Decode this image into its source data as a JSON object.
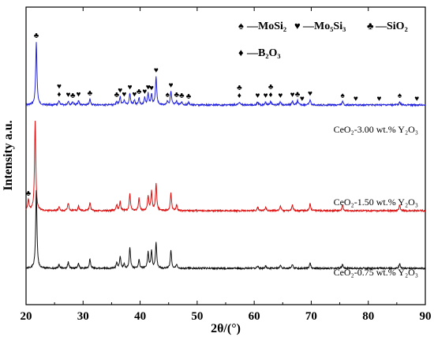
{
  "chart_data": {
    "type": "line",
    "xlabel": "2θ/(°)",
    "ylabel": "Intensity a.u.",
    "xlim": [
      20,
      90
    ],
    "xticks": [
      "20",
      "30",
      "40",
      "50",
      "60",
      "70",
      "80",
      "90"
    ],
    "grid": false,
    "legend": [
      {
        "symbol": "♠",
        "text": "—MoSi₂",
        "phase": "MoSi2"
      },
      {
        "symbol": "♥",
        "text": "—Mo₅Si₃",
        "phase": "Mo5Si3"
      },
      {
        "symbol": "♣",
        "text": "—SiO₂",
        "phase": "SiO2"
      },
      {
        "symbol": "♦",
        "text": "—B₂O₃",
        "phase": "B2O3"
      }
    ],
    "legend_placement": "top-right",
    "series": [
      {
        "name": "CeO₂-3.00 wt.%  Y₂O₃",
        "color": "#2222dd",
        "peaks": [
          [
            21.8,
            1.0
          ],
          [
            25.8,
            0.07
          ],
          [
            27.4,
            0.06
          ],
          [
            28.2,
            0.05
          ],
          [
            29.2,
            0.07
          ],
          [
            31.2,
            0.09
          ],
          [
            35.9,
            0.06
          ],
          [
            36.5,
            0.13
          ],
          [
            37.2,
            0.07
          ],
          [
            38.2,
            0.18
          ],
          [
            39.0,
            0.07
          ],
          [
            39.8,
            0.11
          ],
          [
            40.8,
            0.11
          ],
          [
            41.4,
            0.18
          ],
          [
            42.0,
            0.17
          ],
          [
            42.8,
            0.45
          ],
          [
            44.8,
            0.06
          ],
          [
            45.4,
            0.21
          ],
          [
            46.4,
            0.06
          ],
          [
            47.3,
            0.05
          ],
          [
            48.5,
            0.04
          ],
          [
            57.4,
            0.05
          ],
          [
            60.6,
            0.05
          ],
          [
            62.0,
            0.05
          ],
          [
            62.9,
            0.06
          ],
          [
            64.6,
            0.05
          ],
          [
            66.7,
            0.06
          ],
          [
            67.6,
            0.07
          ],
          [
            69.8,
            0.08
          ],
          [
            75.5,
            0.05
          ],
          [
            85.5,
            0.05
          ]
        ]
      },
      {
        "name": "CeO₂-1.50 wt.%  Y₂O₃",
        "color": "#dd1111",
        "peaks": [
          [
            20.4,
            0.1
          ],
          [
            21.6,
            0.8
          ],
          [
            25.8,
            0.03
          ],
          [
            27.4,
            0.07
          ],
          [
            29.2,
            0.04
          ],
          [
            31.2,
            0.07
          ],
          [
            35.9,
            0.05
          ],
          [
            36.5,
            0.08
          ],
          [
            38.2,
            0.15
          ],
          [
            39.8,
            0.11
          ],
          [
            41.4,
            0.13
          ],
          [
            42.0,
            0.17
          ],
          [
            42.8,
            0.24
          ],
          [
            45.4,
            0.16
          ],
          [
            46.4,
            0.05
          ],
          [
            60.6,
            0.03
          ],
          [
            62.0,
            0.03
          ],
          [
            64.6,
            0.04
          ],
          [
            66.7,
            0.05
          ],
          [
            69.8,
            0.06
          ],
          [
            75.5,
            0.05
          ],
          [
            85.5,
            0.05
          ]
        ]
      },
      {
        "name": "CeO₂-0.75 wt.%  Y₂O₃",
        "color": "#111111",
        "peaks": [
          [
            21.8,
            1.0
          ],
          [
            25.8,
            0.05
          ],
          [
            27.4,
            0.08
          ],
          [
            29.2,
            0.06
          ],
          [
            31.2,
            0.12
          ],
          [
            35.9,
            0.07
          ],
          [
            36.5,
            0.15
          ],
          [
            37.2,
            0.05
          ],
          [
            38.2,
            0.27
          ],
          [
            39.8,
            0.11
          ],
          [
            41.4,
            0.2
          ],
          [
            42.0,
            0.22
          ],
          [
            42.8,
            0.32
          ],
          [
            45.4,
            0.23
          ],
          [
            46.4,
            0.05
          ],
          [
            60.6,
            0.03
          ],
          [
            62.0,
            0.03
          ],
          [
            64.6,
            0.04
          ],
          [
            66.7,
            0.05
          ],
          [
            69.8,
            0.07
          ],
          [
            75.5,
            0.05
          ],
          [
            85.5,
            0.06
          ]
        ]
      }
    ],
    "phase_markers": [
      {
        "x": 21.8,
        "symbol": "♣",
        "phase": "SiO2",
        "series": 0
      },
      {
        "x": 25.8,
        "symbol": "♦",
        "phase": "B2O3",
        "series": 0
      },
      {
        "x": 25.8,
        "symbol": "♥",
        "phase": "Mo5Si3",
        "series": 0
      },
      {
        "x": 27.4,
        "symbol": "♥",
        "phase": "Mo5Si3",
        "series": 0
      },
      {
        "x": 28.2,
        "symbol": "♣",
        "phase": "SiO2",
        "series": 0
      },
      {
        "x": 29.2,
        "symbol": "♥",
        "phase": "Mo5Si3",
        "series": 0
      },
      {
        "x": 31.2,
        "symbol": "♣",
        "phase": "SiO2",
        "series": 0
      },
      {
        "x": 35.9,
        "symbol": "♣",
        "phase": "SiO2",
        "series": 0
      },
      {
        "x": 36.5,
        "symbol": "♥",
        "phase": "Mo5Si3",
        "series": 0
      },
      {
        "x": 37.2,
        "symbol": "♥",
        "phase": "Mo5Si3",
        "series": 0
      },
      {
        "x": 38.2,
        "symbol": "♥",
        "phase": "Mo5Si3",
        "series": 0
      },
      {
        "x": 39.0,
        "symbol": "♥",
        "phase": "Mo5Si3",
        "series": 0
      },
      {
        "x": 39.8,
        "symbol": "♣",
        "phase": "SiO2",
        "series": 0
      },
      {
        "x": 40.8,
        "symbol": "♥",
        "phase": "Mo5Si3",
        "series": 0
      },
      {
        "x": 41.4,
        "symbol": "♥",
        "phase": "Mo5Si3",
        "series": 0
      },
      {
        "x": 42.0,
        "symbol": "♥",
        "phase": "Mo5Si3",
        "series": 0
      },
      {
        "x": 42.8,
        "symbol": "♥",
        "phase": "Mo5Si3",
        "series": 0
      },
      {
        "x": 44.8,
        "symbol": "♠",
        "phase": "MoSi2",
        "series": 0
      },
      {
        "x": 45.4,
        "symbol": "♥",
        "phase": "Mo5Si3",
        "series": 0
      },
      {
        "x": 46.4,
        "symbol": "♣",
        "phase": "SiO2",
        "series": 0
      },
      {
        "x": 47.3,
        "symbol": "♣",
        "phase": "SiO2",
        "series": 0
      },
      {
        "x": 48.5,
        "symbol": "♣",
        "phase": "SiO2",
        "series": 0
      },
      {
        "x": 57.4,
        "symbol": "♦",
        "phase": "B2O3",
        "series": 0
      },
      {
        "x": 57.4,
        "symbol": "♣",
        "phase": "SiO2",
        "series": 0
      },
      {
        "x": 60.6,
        "symbol": "♥",
        "phase": "Mo5Si3",
        "series": 0
      },
      {
        "x": 62.0,
        "symbol": "♥",
        "phase": "Mo5Si3",
        "series": 0
      },
      {
        "x": 62.9,
        "symbol": "♦",
        "phase": "B2O3",
        "series": 0
      },
      {
        "x": 62.9,
        "symbol": "♣",
        "phase": "SiO2",
        "series": 0
      },
      {
        "x": 64.6,
        "symbol": "♥",
        "phase": "Mo5Si3",
        "series": 0
      },
      {
        "x": 66.7,
        "symbol": "♥",
        "phase": "Mo5Si3",
        "series": 0
      },
      {
        "x": 67.6,
        "symbol": "♣",
        "phase": "SiO2",
        "series": 0
      },
      {
        "x": 68.4,
        "symbol": "♥",
        "phase": "Mo5Si3",
        "series": 0
      },
      {
        "x": 69.8,
        "symbol": "♥",
        "phase": "Mo5Si3",
        "series": 0
      },
      {
        "x": 75.5,
        "symbol": "♠",
        "phase": "MoSi2",
        "series": 0
      },
      {
        "x": 77.8,
        "symbol": "♥",
        "phase": "Mo5Si3",
        "series": 0
      },
      {
        "x": 81.9,
        "symbol": "♥",
        "phase": "Mo5Si3",
        "series": 0
      },
      {
        "x": 85.5,
        "symbol": "♠",
        "phase": "MoSi2",
        "series": 0
      },
      {
        "x": 88.5,
        "symbol": "♥",
        "phase": "Mo5Si3",
        "series": 0
      },
      {
        "x": 20.4,
        "symbol": "♣",
        "phase": "SiO2",
        "series": 1
      }
    ]
  }
}
